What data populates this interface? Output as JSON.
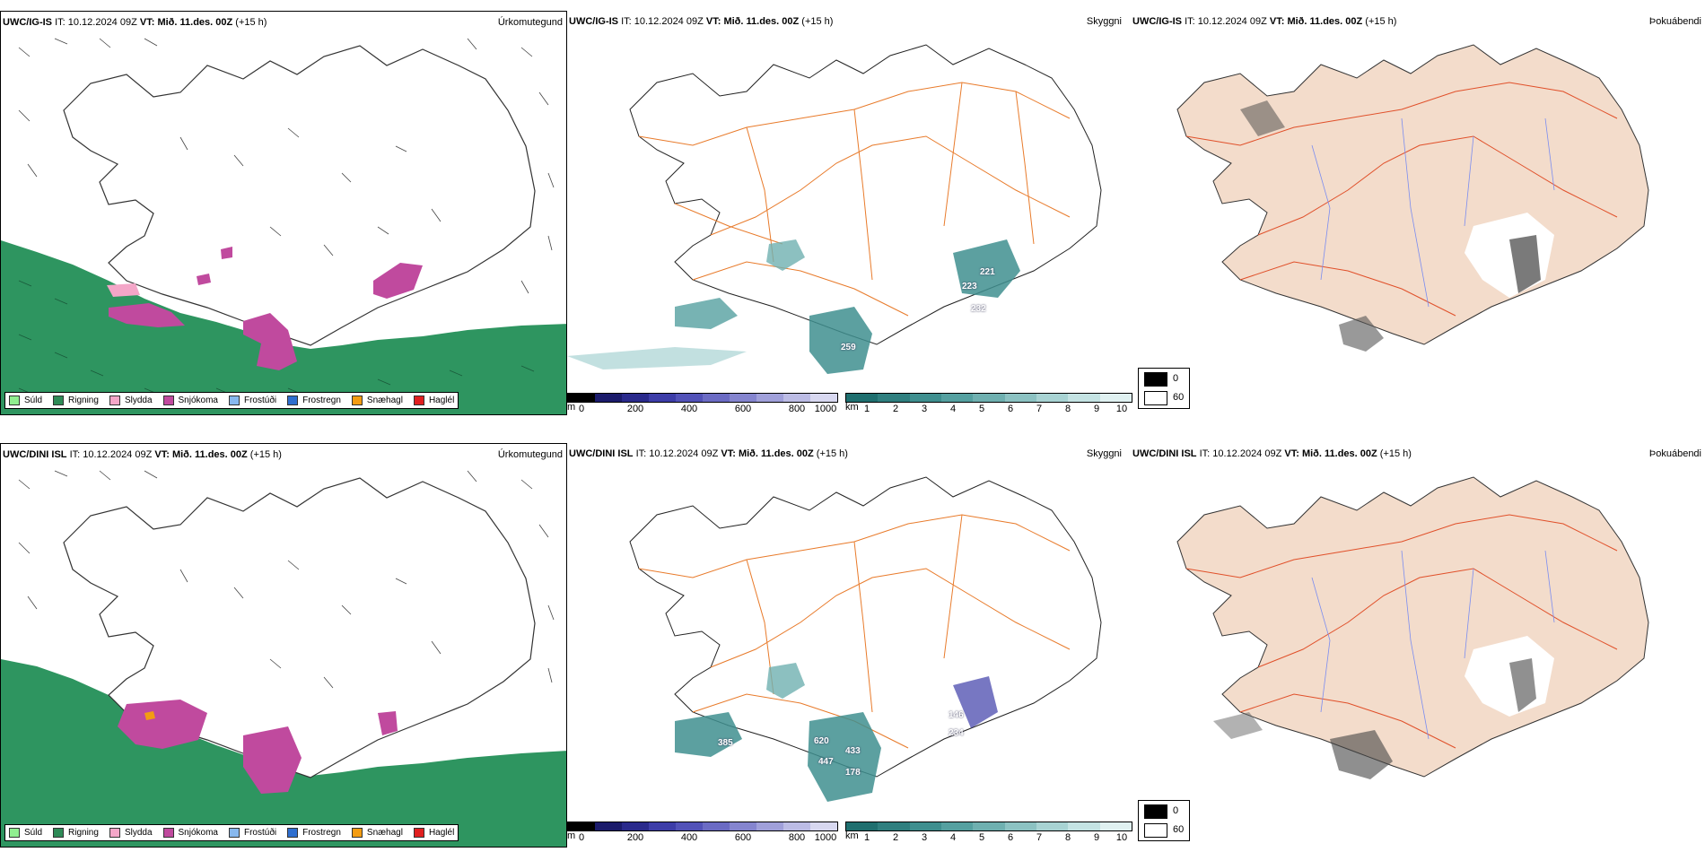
{
  "rows": [
    {
      "model": "UWC/IG-IS",
      "it_label": "IT:",
      "it_value": "10.12.2024 09Z",
      "vt_label": "VT:",
      "vt_value": "Mið. 11.des. 00Z",
      "lead": "(+15 h)",
      "precip_title": "Úrkomutegund",
      "vis_title": "Skyggni",
      "fog_title": "Þokuábendi",
      "vis_labels": [
        {
          "text": "221"
        },
        {
          "text": "223"
        },
        {
          "text": "232"
        },
        {
          "text": "259"
        }
      ]
    },
    {
      "model": "UWC/DINI ISL",
      "it_label": "IT:",
      "it_value": "10.12.2024 09Z",
      "vt_label": "VT:",
      "vt_value": "Mið. 11.des. 00Z",
      "lead": "(+15 h)",
      "precip_title": "Úrkomutegund",
      "vis_title": "Skyggni",
      "fog_title": "Þokuábendi",
      "vis_labels": [
        {
          "text": "146"
        },
        {
          "text": "234"
        },
        {
          "text": "385"
        },
        {
          "text": "620"
        },
        {
          "text": "433"
        },
        {
          "text": "447"
        },
        {
          "text": "178"
        }
      ]
    }
  ],
  "precip_legend": [
    {
      "label": "Súld",
      "color": "#90ee90"
    },
    {
      "label": "Rigning",
      "color": "#2e8b57"
    },
    {
      "label": "Slydda",
      "color": "#f4a6c8"
    },
    {
      "label": "Snjókoma",
      "color": "#c04a9e"
    },
    {
      "label": "Frostúði",
      "color": "#87b8ee"
    },
    {
      "label": "Frostregn",
      "color": "#2f6fcf"
    },
    {
      "label": "Snæhagl",
      "color": "#f39c12"
    },
    {
      "label": "Haglél",
      "color": "#e02020"
    }
  ],
  "height_bar": {
    "unit": "m",
    "ticks": [
      "0",
      "200",
      "400",
      "600",
      "800",
      "1000"
    ],
    "colors": [
      "#000000",
      "#1b1b6b",
      "#2a2a8c",
      "#3d3da8",
      "#5252b8",
      "#6b6bc4",
      "#8585cf",
      "#a0a0da",
      "#bcbce5",
      "#d8d8f0"
    ]
  },
  "visibility_bar": {
    "unit": "km",
    "ticks": [
      "1",
      "2",
      "3",
      "4",
      "5",
      "6",
      "7",
      "8",
      "9",
      "10"
    ],
    "colors": [
      "#1f6f6f",
      "#2f7f7f",
      "#3f8f8f",
      "#55a0a0",
      "#6fb0b0",
      "#8cc2c2",
      "#a8d3d3",
      "#c4e3e3",
      "#e0f1f1"
    ]
  },
  "fog_legend": [
    {
      "value": "0",
      "color": "#000000"
    },
    {
      "value": "60",
      "color": "#ffffff"
    }
  ],
  "colors": {
    "sea_rain": "#2e9560",
    "snow": "#c04a9e",
    "road": "#e87a2a",
    "land_fog": "#f3dccb",
    "river": "#7a8cf0"
  }
}
